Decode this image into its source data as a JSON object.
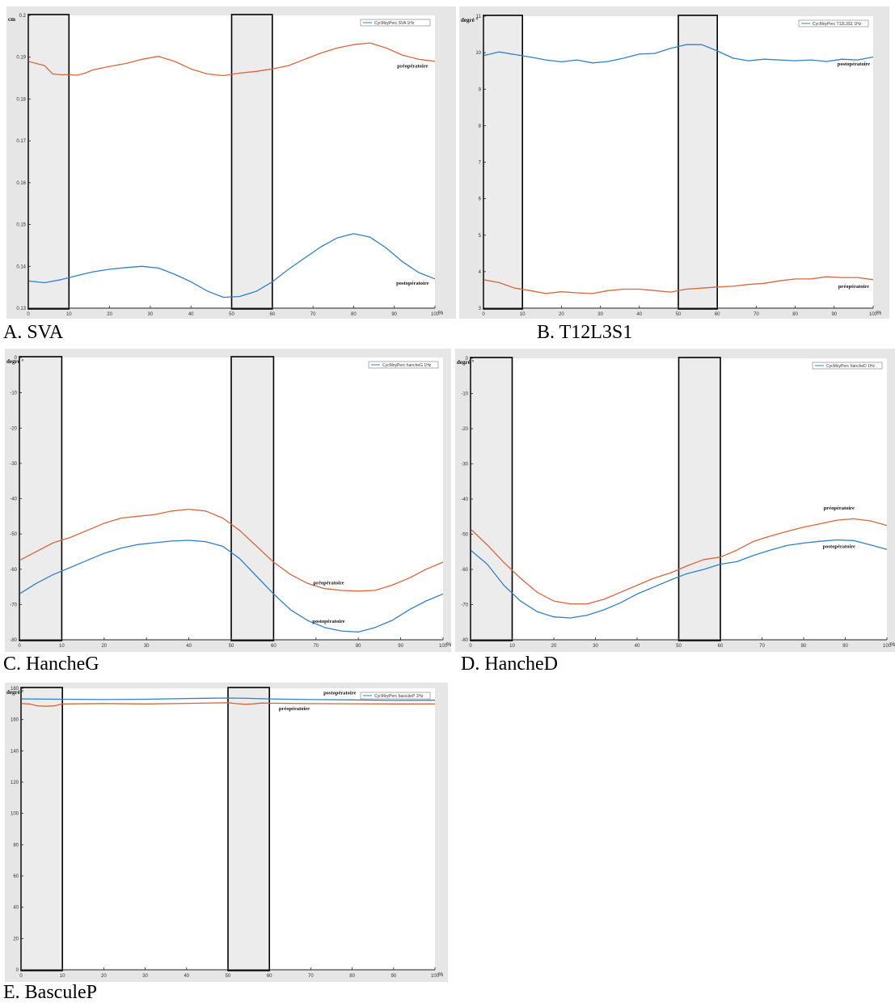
{
  "colors": {
    "post": "#2f80c8",
    "pre": "#d8663a",
    "frame_bg": "#e6e6e6",
    "plot_bg": "#ffffff",
    "band_fill": "#ececec"
  },
  "chart_data": [
    {
      "type": "line",
      "panel": "A",
      "caption": "A. SVA",
      "ylabel": "cm",
      "xunit": "%",
      "xlim": [
        0,
        100
      ],
      "ylim": [
        0.13,
        0.2
      ],
      "xticks": [
        "0",
        "10",
        "20",
        "30",
        "40",
        "50",
        "60",
        "70",
        "80",
        "90",
        "100"
      ],
      "yticks": [
        "0.13",
        "0.14",
        "0.15",
        "0.16",
        "0.17",
        "0.18",
        "0.19",
        "0.2"
      ],
      "legend": "CycMoyPerc SVA 1Hz",
      "legend_position": "top-right",
      "grid": false,
      "bands": [
        [
          0,
          10
        ],
        [
          50,
          60
        ]
      ],
      "series": [
        {
          "name": "postopératoire",
          "color": "post",
          "x": [
            0,
            4,
            8,
            12,
            16,
            20,
            24,
            28,
            32,
            36,
            40,
            44,
            48,
            52,
            56,
            60,
            64,
            68,
            72,
            76,
            80,
            84,
            88,
            92,
            96,
            100
          ],
          "y": [
            0.1365,
            0.1361,
            0.1368,
            0.1378,
            0.1387,
            0.1393,
            0.1397,
            0.14,
            0.1396,
            0.1381,
            0.1363,
            0.1341,
            0.1326,
            0.1328,
            0.134,
            0.1363,
            0.1393,
            0.142,
            0.1447,
            0.1468,
            0.1478,
            0.147,
            0.1444,
            0.1411,
            0.1385,
            0.137
          ]
        },
        {
          "name": "préopératoire",
          "color": "pre",
          "x": [
            0,
            2,
            4,
            6,
            8,
            10,
            12,
            14,
            16,
            20,
            24,
            28,
            32,
            36,
            40,
            44,
            48,
            52,
            56,
            60,
            64,
            68,
            72,
            76,
            80,
            84,
            88,
            92,
            96,
            100
          ],
          "y": [
            0.189,
            0.1885,
            0.188,
            0.186,
            0.1858,
            0.1858,
            0.1857,
            0.1862,
            0.187,
            0.1878,
            0.1885,
            0.1895,
            0.1902,
            0.189,
            0.1872,
            0.186,
            0.1856,
            0.1862,
            0.1866,
            0.1872,
            0.188,
            0.1895,
            0.191,
            0.1922,
            0.193,
            0.1934,
            0.1922,
            0.1905,
            0.1895,
            0.189
          ]
        }
      ],
      "annotations": [
        {
          "text": "préopératoire",
          "x": 94.5,
          "y": 0.1875
        },
        {
          "text": "postopératoire",
          "x": 94.5,
          "y": 0.1356
        }
      ]
    },
    {
      "type": "line",
      "panel": "B",
      "caption": "B. T12L3S1",
      "ylabel": "degré °",
      "xunit": "%",
      "xlim": [
        0,
        100
      ],
      "ylim": [
        3,
        11
      ],
      "xticks": [
        "0",
        "10",
        "20",
        "30",
        "40",
        "50",
        "60",
        "70",
        "80",
        "90",
        "100"
      ],
      "yticks": [
        "3",
        "4",
        "5",
        "6",
        "7",
        "8",
        "9",
        "10",
        "11"
      ],
      "legend": "CycMoyPerc T12L3S1 1Hz",
      "legend_position": "top-right",
      "grid": false,
      "bands": [
        [
          0,
          10
        ],
        [
          50,
          60
        ]
      ],
      "series": [
        {
          "name": "postopératoire",
          "color": "post",
          "x": [
            0,
            4,
            8,
            12,
            16,
            20,
            24,
            28,
            32,
            36,
            40,
            44,
            48,
            52,
            56,
            60,
            64,
            68,
            72,
            76,
            80,
            84,
            88,
            92,
            96,
            100
          ],
          "y": [
            9.92,
            10.02,
            9.95,
            9.88,
            9.8,
            9.75,
            9.8,
            9.72,
            9.76,
            9.85,
            9.96,
            9.98,
            10.12,
            10.22,
            10.22,
            10.05,
            9.85,
            9.78,
            9.82,
            9.8,
            9.78,
            9.8,
            9.76,
            9.82,
            9.8,
            9.88
          ]
        },
        {
          "name": "préopératoire",
          "color": "pre",
          "x": [
            0,
            4,
            8,
            12,
            16,
            20,
            24,
            28,
            32,
            36,
            40,
            44,
            48,
            52,
            56,
            60,
            64,
            68,
            72,
            76,
            80,
            84,
            88,
            92,
            96,
            100
          ],
          "y": [
            3.78,
            3.7,
            3.55,
            3.48,
            3.4,
            3.45,
            3.42,
            3.4,
            3.48,
            3.52,
            3.52,
            3.48,
            3.44,
            3.52,
            3.55,
            3.58,
            3.6,
            3.65,
            3.68,
            3.75,
            3.8,
            3.8,
            3.86,
            3.84,
            3.84,
            3.78
          ]
        }
      ],
      "annotations": [
        {
          "text": "postopératoire",
          "x": 95,
          "y": 9.65
        },
        {
          "text": "préopératoire",
          "x": 95,
          "y": 3.55
        }
      ]
    },
    {
      "type": "line",
      "panel": "C",
      "caption": "C. HancheG",
      "ylabel": "degré °",
      "xunit": "%",
      "xlim": [
        0,
        100
      ],
      "ylim": [
        -80,
        0
      ],
      "xticks": [
        "0",
        "10",
        "20",
        "30",
        "40",
        "50",
        "60",
        "70",
        "80",
        "90",
        "100"
      ],
      "yticks": [
        "-80",
        "-70",
        "-60",
        "-50",
        "-40",
        "-30",
        "-20",
        "-10",
        "0"
      ],
      "legend": "CycMoyPerc hancheG 1Hz",
      "legend_position": "top-right",
      "grid": false,
      "bands": [
        [
          0,
          10
        ],
        [
          50,
          60
        ]
      ],
      "series": [
        {
          "name": "postopératoire",
          "color": "post",
          "x": [
            0,
            4,
            8,
            12,
            16,
            20,
            24,
            28,
            32,
            36,
            40,
            44,
            48,
            52,
            56,
            60,
            64,
            68,
            72,
            76,
            80,
            84,
            88,
            92,
            96,
            100
          ],
          "y": [
            -67,
            -64,
            -61.5,
            -59.5,
            -57.5,
            -55.5,
            -54,
            -53,
            -52.5,
            -52,
            -51.8,
            -52.2,
            -53.5,
            -57,
            -62,
            -67,
            -71.5,
            -74.5,
            -76.5,
            -77.5,
            -77.8,
            -76.5,
            -74.5,
            -71.5,
            -69,
            -67
          ]
        },
        {
          "name": "préopératoire",
          "color": "pre",
          "x": [
            0,
            4,
            8,
            12,
            16,
            20,
            24,
            28,
            32,
            36,
            40,
            44,
            48,
            52,
            56,
            60,
            64,
            68,
            72,
            76,
            80,
            84,
            88,
            92,
            96,
            100
          ],
          "y": [
            -57.5,
            -55,
            -52.5,
            -51,
            -49,
            -47,
            -45.5,
            -45,
            -44.5,
            -43.5,
            -43,
            -43.5,
            -45.5,
            -49,
            -53.5,
            -58,
            -61.5,
            -64,
            -65.5,
            -66,
            -66.2,
            -66,
            -64.5,
            -62.5,
            -60,
            -58
          ]
        }
      ],
      "annotations": [
        {
          "text": "préopératoire",
          "x": 73,
          "y": -64.3
        },
        {
          "text": "postopératoire",
          "x": 73,
          "y": -75.2
        }
      ]
    },
    {
      "type": "line",
      "panel": "D",
      "caption": "D. HancheD",
      "ylabel": "degré °",
      "xunit": "%",
      "xlim": [
        0,
        100
      ],
      "ylim": [
        -80,
        0
      ],
      "xticks": [
        "0",
        "10",
        "20",
        "30",
        "40",
        "50",
        "60",
        "70",
        "80",
        "90",
        "100"
      ],
      "yticks": [
        "-80",
        "-70",
        "-60",
        "-50",
        "-40",
        "-30",
        "-20",
        "-10",
        "0"
      ],
      "legend": "CycMoyPerc hancheD 1Hz",
      "legend_position": "top-right",
      "grid": false,
      "bands": [
        [
          0,
          10
        ],
        [
          50,
          60
        ]
      ],
      "series": [
        {
          "name": "postopératoire",
          "color": "post",
          "x": [
            0,
            4,
            8,
            12,
            16,
            20,
            24,
            28,
            32,
            36,
            40,
            44,
            48,
            52,
            56,
            60,
            64,
            68,
            72,
            76,
            80,
            84,
            88,
            92,
            96,
            100
          ],
          "y": [
            -54.5,
            -58.5,
            -64.5,
            -69,
            -72,
            -73.5,
            -73.8,
            -73,
            -71.5,
            -69.5,
            -67,
            -65,
            -63,
            -61.2,
            -60,
            -58.5,
            -57.8,
            -56,
            -54.5,
            -53.2,
            -52.5,
            -52,
            -51.6,
            -51.8,
            -53,
            -54.3
          ]
        },
        {
          "name": "préopératoire",
          "color": "pre",
          "x": [
            0,
            4,
            8,
            12,
            16,
            20,
            24,
            28,
            32,
            36,
            40,
            44,
            48,
            52,
            56,
            60,
            64,
            68,
            72,
            76,
            80,
            84,
            88,
            92,
            96,
            100
          ],
          "y": [
            -48.5,
            -53,
            -58,
            -62.5,
            -66.5,
            -69,
            -69.8,
            -69.8,
            -68.5,
            -66.5,
            -64.5,
            -62.5,
            -61,
            -59,
            -57.2,
            -56.5,
            -54.5,
            -52,
            -50.5,
            -49.2,
            -48,
            -47,
            -46,
            -45.6,
            -46.2,
            -47.5
          ]
        }
      ],
      "annotations": [
        {
          "text": "préopératoire",
          "x": 88.5,
          "y": -43
        },
        {
          "text": "postopératoire",
          "x": 88.5,
          "y": -53.9
        }
      ]
    },
    {
      "type": "line",
      "panel": "E",
      "caption": "E. BasculeP",
      "ylabel": "degré °",
      "xunit": "%",
      "xlim": [
        0,
        100
      ],
      "ylim": [
        0,
        180
      ],
      "xticks": [
        "0",
        "10",
        "20",
        "30",
        "40",
        "50",
        "60",
        "70",
        "80",
        "90",
        "100"
      ],
      "yticks": [
        "0",
        "20",
        "40",
        "60",
        "80",
        "100",
        "120",
        "140",
        "160",
        "180"
      ],
      "legend": "CycMoyPerc basculeP 1Hz",
      "legend_position": "top-right",
      "grid": false,
      "bands": [
        [
          0,
          10
        ],
        [
          50,
          60
        ]
      ],
      "series": [
        {
          "name": "postopératoire",
          "color": "post",
          "x": [
            0,
            10,
            20,
            30,
            40,
            50,
            55,
            60,
            70,
            80,
            90,
            100
          ],
          "y": [
            173.2,
            173.0,
            172.8,
            173.0,
            173.5,
            173.8,
            173.6,
            173.2,
            172.8,
            172.6,
            172.3,
            172.4
          ]
        },
        {
          "name": "préopératoire",
          "color": "pre",
          "x": [
            0,
            2,
            4,
            6,
            8,
            10,
            20,
            30,
            40,
            50,
            52,
            54,
            56,
            58,
            60,
            70,
            80,
            90,
            100
          ],
          "y": [
            170.2,
            170.0,
            168.8,
            168.5,
            168.8,
            170.0,
            170.3,
            170.0,
            170.4,
            170.8,
            170.2,
            169.8,
            170.0,
            170.6,
            170.5,
            170.2,
            170.1,
            170.0,
            170.0
          ]
        }
      ],
      "annotations": [
        {
          "text": "postopératoire",
          "x": 77,
          "y": 176
        },
        {
          "text": "préopératoire",
          "x": 66,
          "y": 166
        }
      ]
    }
  ]
}
